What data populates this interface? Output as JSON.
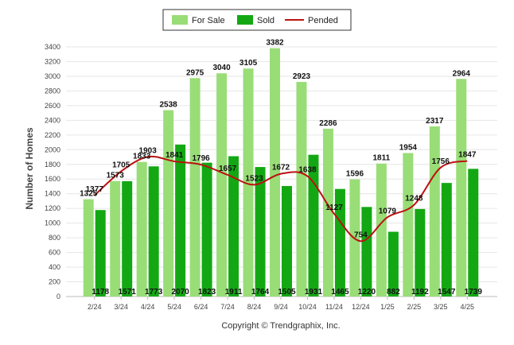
{
  "chart_data": {
    "type": "bar",
    "categories": [
      "2/24",
      "3/24",
      "4/24",
      "5/24",
      "6/24",
      "7/24",
      "8/24",
      "9/24",
      "10/24",
      "11/24",
      "12/24",
      "1/25",
      "2/25",
      "3/25",
      "4/25"
    ],
    "series": [
      {
        "name": "For Sale",
        "type": "bar",
        "color": "#99dd77",
        "values": [
          1325,
          1573,
          1833,
          2538,
          2975,
          3040,
          3105,
          3382,
          2923,
          2286,
          1596,
          1811,
          1954,
          2317,
          2964
        ]
      },
      {
        "name": "Sold",
        "type": "bar",
        "color": "#13a813",
        "values": [
          1178,
          1571,
          1773,
          2070,
          1823,
          1911,
          1764,
          1505,
          1931,
          1465,
          1220,
          882,
          1192,
          1547,
          1739
        ]
      },
      {
        "name": "Pended",
        "type": "line",
        "color": "#bb1111",
        "values": [
          1377,
          1705,
          1903,
          1841,
          1796,
          1657,
          1523,
          1672,
          1638,
          1127,
          754,
          1079,
          1248,
          1756,
          1847
        ]
      }
    ],
    "ylabel": "Number of Homes",
    "yticks": [
      0,
      200,
      400,
      600,
      800,
      1000,
      1200,
      1400,
      1600,
      1800,
      2000,
      2200,
      2400,
      2600,
      2800,
      3000,
      3200,
      3400
    ],
    "ylim": [
      0,
      3400
    ],
    "grid": true,
    "legend_position": "top-center"
  },
  "footer": {
    "copyright": "Copyright © Trendgraphix, Inc."
  }
}
